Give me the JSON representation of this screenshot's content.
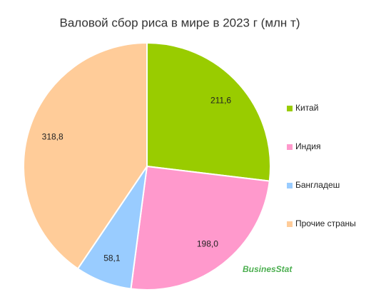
{
  "chart_data": {
    "type": "pie",
    "title": "Валовой сбор риса в мире в 2023 г  (млн т)",
    "categories": [
      "Китай",
      "Индия",
      "Бангладеш",
      "Прочие страны"
    ],
    "values": [
      211.6,
      198.0,
      58.1,
      318.8
    ],
    "value_labels": [
      "211,6",
      "198,0",
      "58,1",
      "318,8"
    ],
    "colors": [
      "#99cc00",
      "#ff99cc",
      "#99ccff",
      "#ffcc99"
    ],
    "legend": "right",
    "watermark": "BusinesStat"
  }
}
